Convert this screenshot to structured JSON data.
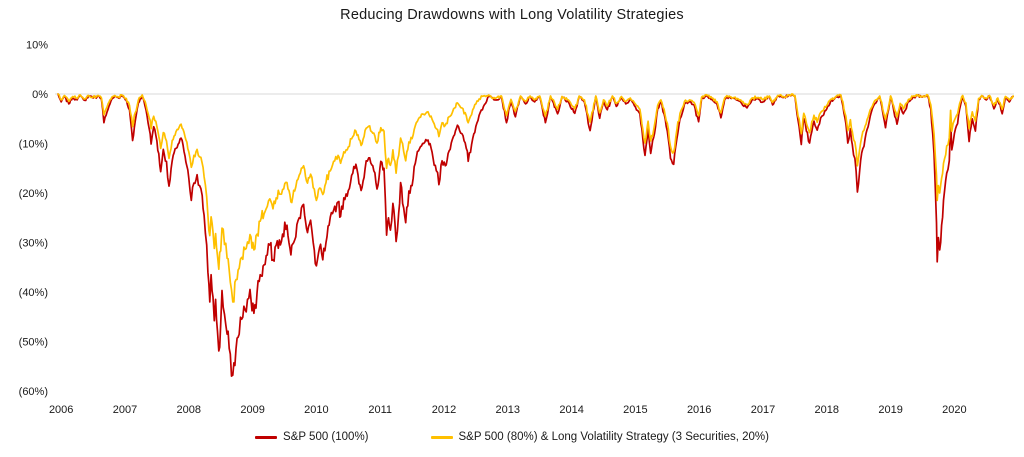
{
  "chart_data": {
    "type": "line",
    "title": "Reducing Drawdowns with Long Volatility Strategies",
    "xlabel": "",
    "ylabel": "",
    "xlim": [
      2006.45,
      2021.42
    ],
    "ylim": [
      -62,
      10
    ],
    "legend_position": "bottom",
    "grid": "horizontal zero-line only",
    "grid_color": "#d9d9d9",
    "y_ticks": [
      {
        "value": 10,
        "label": "10%"
      },
      {
        "value": 0,
        "label": "0%"
      },
      {
        "value": -10,
        "label": "(10%)"
      },
      {
        "value": -20,
        "label": "(20%)"
      },
      {
        "value": -30,
        "label": "(30%)"
      },
      {
        "value": -40,
        "label": "(40%)"
      },
      {
        "value": -50,
        "label": "(50%)"
      },
      {
        "value": -60,
        "label": "(60%)"
      }
    ],
    "x_ticks": [
      2006,
      2007,
      2008,
      2009,
      2010,
      2011,
      2012,
      2013,
      2014,
      2015,
      2016,
      2017,
      2018,
      2019,
      2020
    ],
    "x": [
      2006.45,
      2006.5,
      2006.55,
      2006.62,
      2006.68,
      2006.75,
      2006.8,
      2006.87,
      2006.93,
      2007.0,
      2007.08,
      2007.13,
      2007.17,
      2007.22,
      2007.28,
      2007.34,
      2007.4,
      2007.46,
      2007.52,
      2007.57,
      2007.62,
      2007.66,
      2007.71,
      2007.77,
      2007.83,
      2007.88,
      2007.91,
      2007.95,
      2008.0,
      2008.06,
      2008.1,
      2008.15,
      2008.19,
      2008.24,
      2008.3,
      2008.38,
      2008.44,
      2008.5,
      2008.54,
      2008.58,
      2008.63,
      2008.67,
      2008.71,
      2008.74,
      2008.78,
      2008.8,
      2008.83,
      2008.85,
      2008.88,
      2008.9,
      2008.92,
      2008.95,
      2008.97,
      2009.0,
      2009.02,
      2009.06,
      2009.1,
      2009.15,
      2009.19,
      2009.24,
      2009.29,
      2009.33,
      2009.38,
      2009.42,
      2009.46,
      2009.52,
      2009.57,
      2009.62,
      2009.68,
      2009.73,
      2009.77,
      2009.82,
      2009.87,
      2009.92,
      2009.97,
      2010.04,
      2010.1,
      2010.16,
      2010.23,
      2010.3,
      2010.36,
      2010.41,
      2010.45,
      2010.5,
      2010.55,
      2010.6,
      2010.65,
      2010.7,
      2010.77,
      2010.84,
      2010.88,
      2010.93,
      2011.0,
      2011.07,
      2011.12,
      2011.2,
      2011.28,
      2011.32,
      2011.4,
      2011.45,
      2011.51,
      2011.56,
      2011.6,
      2011.63,
      2011.66,
      2011.7,
      2011.73,
      2011.75,
      2011.79,
      2011.82,
      2011.9,
      2011.95,
      2012.0,
      2012.05,
      2012.1,
      2012.18,
      2012.25,
      2012.33,
      2012.38,
      2012.42,
      2012.47,
      2012.52,
      2012.58,
      2012.65,
      2012.71,
      2012.78,
      2012.85,
      2012.88,
      2012.95,
      2013.0,
      2013.05,
      2013.12,
      2013.2,
      2013.3,
      2013.4,
      2013.48,
      2013.55,
      2013.62,
      2013.7,
      2013.78,
      2013.85,
      2013.92,
      2014.0,
      2014.09,
      2014.17,
      2014.28,
      2014.35,
      2014.45,
      2014.55,
      2014.62,
      2014.7,
      2014.79,
      2014.88,
      2014.94,
      2015.0,
      2015.06,
      2015.14,
      2015.2,
      2015.28,
      2015.35,
      2015.42,
      2015.5,
      2015.57,
      2015.65,
      2015.7,
      2015.74,
      2015.8,
      2015.85,
      2015.9,
      2015.95,
      2016.0,
      2016.05,
      2016.1,
      2016.15,
      2016.2,
      2016.27,
      2016.35,
      2016.42,
      2016.49,
      2016.54,
      2016.62,
      2016.7,
      2016.78,
      2016.84,
      2016.9,
      2016.97,
      2017.05,
      2017.15,
      2017.25,
      2017.33,
      2017.42,
      2017.5,
      2017.6,
      2017.65,
      2017.73,
      2017.82,
      2017.9,
      2018.0,
      2018.1,
      2018.14,
      2018.18,
      2018.23,
      2018.3,
      2018.35,
      2018.42,
      2018.5,
      2018.56,
      2018.65,
      2018.72,
      2018.8,
      2018.83,
      2018.87,
      2018.9,
      2018.94,
      2018.98,
      2019.03,
      2019.1,
      2019.18,
      2019.25,
      2019.33,
      2019.42,
      2019.5,
      2019.6,
      2019.65,
      2019.7,
      2019.78,
      2019.85,
      2019.92,
      2020.0,
      2020.08,
      2020.13,
      2020.16,
      2020.18,
      2020.2,
      2020.22,
      2020.23,
      2020.25,
      2020.27,
      2020.3,
      2020.33,
      2020.38,
      2020.42,
      2020.44,
      2020.46,
      2020.5,
      2020.55,
      2020.6,
      2020.63,
      2020.68,
      2020.73,
      2020.78,
      2020.83,
      2020.88,
      2020.93,
      2021.0,
      2021.05,
      2021.12,
      2021.18,
      2021.25,
      2021.3,
      2021.36,
      2021.42
    ],
    "series": [
      {
        "name": "S&P 500 (100%)",
        "color": "#C00000",
        "values": [
          0,
          -1.6,
          -0.4,
          -2,
          -0.6,
          -1.2,
          -0.3,
          -1.3,
          -0.4,
          -0.8,
          -0.4,
          -1,
          -5.8,
          -3.6,
          -1.4,
          -0.4,
          -0.8,
          -0.3,
          -1.2,
          -3.2,
          -9.4,
          -5.5,
          -1.8,
          -0.3,
          -3.2,
          -7,
          -10.1,
          -6.6,
          -9.5,
          -15.7,
          -11.2,
          -13.6,
          -18.6,
          -13.5,
          -11,
          -8.9,
          -12.5,
          -17,
          -21.5,
          -18,
          -16.3,
          -18.5,
          -20.5,
          -24.5,
          -30.5,
          -36,
          -42,
          -36.5,
          -41,
          -45.8,
          -41.5,
          -48,
          -51.9,
          -46.5,
          -39.7,
          -44.5,
          -48.5,
          -52.5,
          -56.8,
          -51.5,
          -48.5,
          -45.5,
          -43.5,
          -41.5,
          -39.5,
          -44.3,
          -40,
          -36.5,
          -34.5,
          -32.5,
          -30.5,
          -33.5,
          -30.5,
          -29.5,
          -28.3,
          -26.5,
          -32.5,
          -29.5,
          -25,
          -22.3,
          -28,
          -25.5,
          -30,
          -34.7,
          -31,
          -33.5,
          -30,
          -26.5,
          -23.5,
          -21.8,
          -24.7,
          -21,
          -19.5,
          -16,
          -14.2,
          -19.5,
          -13.5,
          -12.9,
          -15.5,
          -19.2,
          -13.6,
          -15,
          -28.5,
          -25,
          -27.5,
          -22.1,
          -26,
          -29.8,
          -24,
          -17.9,
          -26,
          -19.6,
          -18.5,
          -14,
          -11.5,
          -10,
          -9.3,
          -13,
          -15.5,
          -18.3,
          -13.5,
          -14.5,
          -11.5,
          -8.5,
          -6.3,
          -8,
          -11,
          -13.6,
          -9,
          -6.5,
          -4.3,
          -2.5,
          -0.4,
          -1.2,
          -0.5,
          -5.8,
          -1.5,
          -4.6,
          -0.5,
          -2,
          -0.5,
          -1.6,
          -0.5,
          -5.8,
          -0.5,
          -4,
          -0.6,
          -1.6,
          -3.9,
          -0.5,
          -1.6,
          -7.4,
          -0.5,
          -4.9,
          -1.6,
          -3.2,
          -0.5,
          -2.5,
          -0.6,
          -2,
          -1,
          -2.6,
          -4,
          -12.4,
          -7,
          -12,
          -8,
          -3,
          -1.6,
          -4,
          -7.5,
          -13,
          -14.2,
          -9,
          -5,
          -2,
          -1.6,
          -2.2,
          -5.6,
          -0.8,
          -0.3,
          -1.1,
          -2.1,
          -4.8,
          -1.1,
          -0.5,
          -0.9,
          -1.6,
          -2.8,
          -1.1,
          -0.9,
          -1.6,
          -0.5,
          -2.2,
          -0.4,
          -0.7,
          -0.3,
          -0.4,
          -10.2,
          -5,
          -7.5,
          -9.9,
          -5.5,
          -7.3,
          -4.5,
          -3,
          -1.5,
          -0.6,
          -0.3,
          -6,
          -9.9,
          -7,
          -10.2,
          -13,
          -19.8,
          -13.5,
          -9,
          -4.5,
          -2,
          -0.5,
          -6.8,
          -0.5,
          -6.1,
          -2.5,
          -4,
          -1.5,
          -0.6,
          -0.3,
          -0.6,
          -0.3,
          -3,
          -8,
          -12,
          -19,
          -26,
          -33.9,
          -29,
          -31.5,
          -26.5,
          -21.5,
          -16,
          -13.5,
          -5,
          -11.3,
          -8,
          -6,
          -2,
          -0.4,
          -2.5,
          -9.6,
          -5,
          -7.5,
          -1.2,
          -0.4,
          -1.2,
          -0.4,
          -3,
          -1,
          -4,
          -0.6,
          -1.6,
          -0.5
        ]
      },
      {
        "name": "S&P 500 (80%) & Long Volatility Strategy (3 Securities, 20%)",
        "color": "#FFC000",
        "values": [
          0,
          -1.2,
          -0.3,
          -1.5,
          -0.5,
          -0.9,
          -0.2,
          -1,
          -0.3,
          -0.6,
          -0.3,
          -0.8,
          -4.2,
          -2.6,
          -1,
          -0.3,
          -0.6,
          -0.3,
          -0.9,
          -2.3,
          -6.6,
          -3.8,
          -1.2,
          -0.2,
          -2.2,
          -4.8,
          -7,
          -4.5,
          -6.6,
          -11,
          -7.8,
          -9.5,
          -13,
          -9.4,
          -7.6,
          -6.1,
          -8.6,
          -11.7,
          -14.8,
          -12.4,
          -11.2,
          -12.7,
          -14,
          -16.7,
          -20.8,
          -24.5,
          -28.6,
          -24.8,
          -27.9,
          -31.2,
          -28.2,
          -32.7,
          -35.4,
          -31.7,
          -27.1,
          -30.4,
          -33.2,
          -38,
          -42,
          -37.5,
          -35.2,
          -33,
          -31.4,
          -29.9,
          -28.4,
          -31.5,
          -28.3,
          -25.7,
          -24.2,
          -22.7,
          -21.2,
          -23.2,
          -21,
          -20.2,
          -19.3,
          -17.9,
          -21.8,
          -19.6,
          -16.4,
          -14.5,
          -18,
          -16.2,
          -18.9,
          -21.5,
          -19,
          -20.3,
          -17.9,
          -15.6,
          -13.6,
          -12.4,
          -14,
          -11.7,
          -10.7,
          -8.6,
          -7.5,
          -10.4,
          -6.9,
          -6.5,
          -7.9,
          -9.9,
          -6.8,
          -7.5,
          -15,
          -13,
          -14.4,
          -11.3,
          -13.6,
          -16,
          -12.4,
          -8.9,
          -13.5,
          -9.7,
          -9,
          -6.4,
          -5,
          -4.1,
          -3.6,
          -5.6,
          -7,
          -8.6,
          -5.8,
          -6.3,
          -4.6,
          -3,
          -1.8,
          -2.8,
          -4.4,
          -5.8,
          -3.2,
          -2,
          -1,
          -0.4,
          -0.2,
          -0.9,
          -0.4,
          -4.4,
          -1.1,
          -3.5,
          -0.4,
          -1.5,
          -0.4,
          -1.2,
          -0.4,
          -4.5,
          -0.4,
          -3.1,
          -0.5,
          -1.2,
          -3,
          -0.4,
          -1.2,
          -5.7,
          -0.4,
          -3.8,
          -1.2,
          -2.4,
          -0.4,
          -1.9,
          -0.5,
          -1.5,
          -0.8,
          -2,
          -3.1,
          -9.9,
          -5.5,
          -9.5,
          -6.3,
          -2.3,
          -1.2,
          -3.1,
          -5.9,
          -10.6,
          -11.7,
          -7.2,
          -3.9,
          -1.5,
          -1.2,
          -1.7,
          -4.4,
          -0.6,
          -0.2,
          -0.8,
          -1.6,
          -3.8,
          -0.8,
          -0.4,
          -0.7,
          -1.2,
          -2.2,
          -0.8,
          -0.7,
          -1.2,
          -0.4,
          -1.7,
          -0.3,
          -0.5,
          -0.2,
          -0.3,
          -8,
          -3.9,
          -5.9,
          -7.8,
          -4.3,
          -5.7,
          -3.5,
          -2.3,
          -1.1,
          -0.4,
          -0.2,
          -4.5,
          -7.4,
          -5.2,
          -7.6,
          -9.7,
          -14.5,
          -9.9,
          -6.5,
          -3.2,
          -1.4,
          -0.4,
          -5.1,
          -0.4,
          -4.6,
          -1.9,
          -3,
          -1.1,
          -0.5,
          -0.2,
          -0.5,
          -0.2,
          -2.2,
          -5.5,
          -8,
          -12.5,
          -16.5,
          -21.5,
          -18.5,
          -20,
          -17,
          -14,
          -10.5,
          -8.8,
          -3.3,
          -7.5,
          -5.3,
          -4,
          -1.3,
          -0.3,
          -1.8,
          -7,
          -3.6,
          -5.5,
          -0.9,
          -0.3,
          -0.9,
          -0.3,
          -2.3,
          -0.8,
          -3.1,
          -0.5,
          -1.2,
          -0.4
        ]
      }
    ],
    "texture": {
      "noise_base": 0.3,
      "noise_scale": 0.045,
      "step_years": 0.016,
      "seed": 7
    }
  }
}
